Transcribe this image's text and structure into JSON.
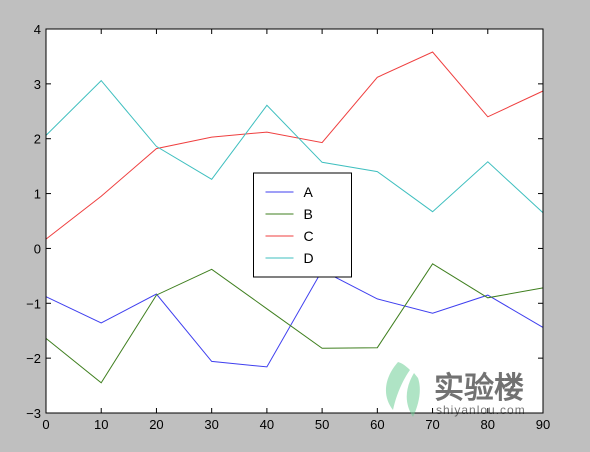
{
  "chart_data": {
    "type": "line",
    "title": "",
    "xlabel": "",
    "ylabel": "",
    "x": [
      0,
      10,
      20,
      30,
      40,
      50,
      60,
      70,
      80,
      90
    ],
    "xlim": [
      0,
      90
    ],
    "ylim": [
      -3,
      4
    ],
    "xticks": [
      0,
      10,
      20,
      30,
      40,
      50,
      60,
      70,
      80,
      90
    ],
    "yticks": [
      -3,
      -2,
      -1,
      0,
      1,
      2,
      3,
      4
    ],
    "xtick_labels": [
      "0",
      "10",
      "20",
      "30",
      "40",
      "50",
      "60",
      "70",
      "80",
      "90"
    ],
    "ytick_labels": [
      "−3",
      "−2",
      "−1",
      "0",
      "1",
      "2",
      "3",
      "4"
    ],
    "grid": false,
    "legend_position": "center",
    "series": [
      {
        "name": "A",
        "color": "#3f3fef",
        "values": [
          -0.88,
          -1.36,
          -0.83,
          -2.06,
          -2.16,
          -0.4,
          -0.92,
          -1.18,
          -0.85,
          -1.44
        ]
      },
      {
        "name": "B",
        "color": "#3f7f1f",
        "values": [
          -1.64,
          -2.45,
          -0.85,
          -0.38,
          -1.1,
          -1.82,
          -1.81,
          -0.28,
          -0.9,
          -0.72
        ]
      },
      {
        "name": "C",
        "color": "#ef3f3f",
        "values": [
          0.17,
          0.95,
          1.82,
          2.03,
          2.12,
          1.93,
          3.12,
          3.58,
          2.4,
          2.87
        ]
      },
      {
        "name": "D",
        "color": "#3fbfbf",
        "values": [
          2.06,
          3.06,
          1.86,
          1.26,
          2.61,
          1.57,
          1.4,
          0.67,
          1.58,
          0.65
        ]
      }
    ]
  },
  "watermark": {
    "text": "实验楼",
    "subtext": "shiyanlou.com",
    "color": "#6fcf97"
  }
}
